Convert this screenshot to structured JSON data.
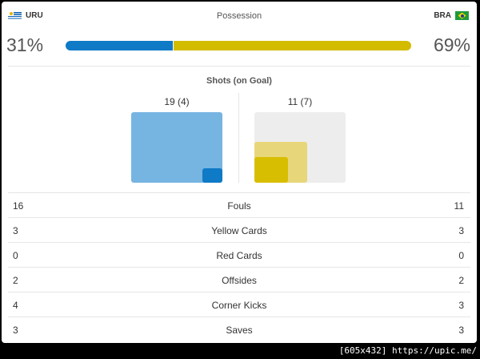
{
  "teams": {
    "home": "URU",
    "away": "BRA"
  },
  "possession": {
    "title": "Possession",
    "home_pct": "31%",
    "away_pct": "69%",
    "home_value": 31,
    "away_value": 69
  },
  "colors": {
    "home": "#0f7ac6",
    "away": "#d3bb00"
  },
  "shots": {
    "title": "Shots (on Goal)",
    "home_label": "19 (4)",
    "away_label": "11 (7)",
    "home_total": 19,
    "home_on_goal": 4,
    "away_total": 11,
    "away_on_goal": 7
  },
  "stats": [
    {
      "home": "16",
      "label": "Fouls",
      "away": "11"
    },
    {
      "home": "3",
      "label": "Yellow Cards",
      "away": "3"
    },
    {
      "home": "0",
      "label": "Red Cards",
      "away": "0"
    },
    {
      "home": "2",
      "label": "Offsides",
      "away": "2"
    },
    {
      "home": "4",
      "label": "Corner Kicks",
      "away": "3"
    },
    {
      "home": "3",
      "label": "Saves",
      "away": "3"
    }
  ],
  "footer": "[605x432] https://upic.me/"
}
